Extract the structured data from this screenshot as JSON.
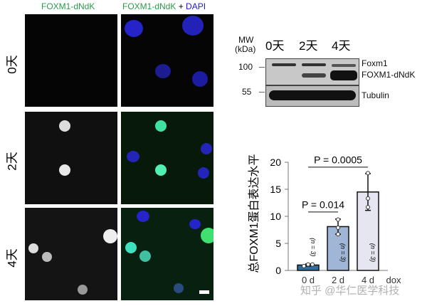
{
  "columns": {
    "left": "FOXM1-dNdK",
    "right_a": "FOXM1-dNdK",
    "right_plus": " + ",
    "right_b": "DAPI"
  },
  "rows": [
    "0天",
    "2天",
    "4天"
  ],
  "colors": {
    "green": "#2a9a4a",
    "blue": "#1a1adc",
    "bar0": "#2f6f9e",
    "bar1": "#9fb6d6",
    "bar2": "#e6e6f0"
  },
  "blot": {
    "mw_label": "MW",
    "kda_label": "(kDa)",
    "lanes": [
      "0天",
      "2天",
      "4天"
    ],
    "markers": [
      "100",
      "55"
    ],
    "bands": [
      "Foxm1",
      "FOXM1-dNdK",
      "Tubulin"
    ]
  },
  "chart_data": {
    "type": "bar",
    "ylabel": "总FOXM1蛋白表达水平",
    "categories": [
      "0 d",
      "2 d",
      "4 d"
    ],
    "x_suffix": "dox",
    "values": [
      1.0,
      8.1,
      14.5
    ],
    "points": [
      [
        0.8,
        1.1,
        1.1
      ],
      [
        6.7,
        7.9,
        9.4
      ],
      [
        11.7,
        13.3,
        18.0
      ]
    ],
    "errors": [
      0.2,
      1.4,
      3.4
    ],
    "n_labels": [
      "(n = 3)",
      "(n = 3)",
      "(n = 3)"
    ],
    "ylim": [
      0,
      20
    ],
    "yticks": [
      "0",
      "5",
      "10",
      "15",
      "20"
    ],
    "annotations": [
      "P = 0.014",
      "P = 0.0005"
    ]
  },
  "watermark": "知乎 @华仁医学科技"
}
